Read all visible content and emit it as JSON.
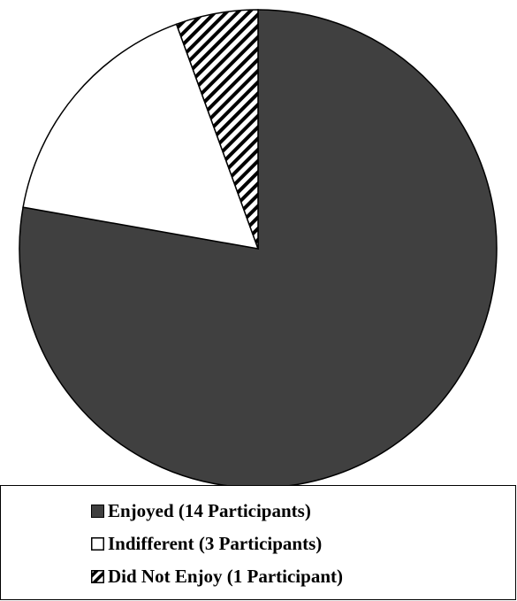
{
  "chart_data": {
    "type": "pie",
    "title": "",
    "legend_position": "bottom",
    "slices": [
      {
        "label": "Enjoyed (14 Participants)",
        "value": 14,
        "fill": "#404040",
        "pattern": "solid"
      },
      {
        "label": "Indifferent (3 Participants)",
        "value": 3,
        "fill": "#ffffff",
        "pattern": "solid"
      },
      {
        "label": "Did Not Enjoy (1 Participant)",
        "value": 1,
        "fill": "#ffffff",
        "pattern": "diagonal-hatch"
      }
    ],
    "start": "12 o'clock",
    "direction": "clockwise",
    "outline_color": "#000000"
  }
}
